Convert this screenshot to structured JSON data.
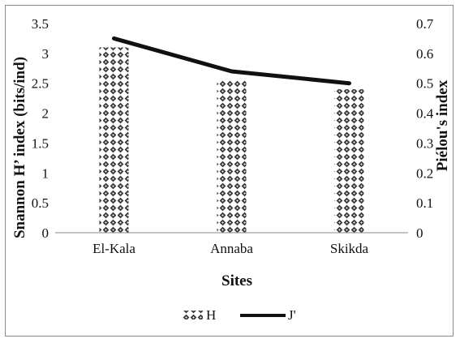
{
  "chart_data": {
    "type": "bar",
    "categories": [
      "El-Kala",
      "Annaba",
      "Skikda"
    ],
    "series": [
      {
        "name": "H",
        "type": "bar",
        "axis": "left",
        "values": [
          3.1,
          2.55,
          2.4
        ],
        "color": "#3a3a3a",
        "pattern": "diamond-plaid"
      },
      {
        "name": "J'",
        "type": "line",
        "axis": "right",
        "values": [
          0.65,
          0.54,
          0.5
        ],
        "color": "#111111"
      }
    ],
    "xlabel": "Sites",
    "ylabel": "Snannon H’ index (bits/ind)",
    "y2label": "Piélou's index",
    "ylim": [
      0,
      3.5
    ],
    "y2lim": [
      0,
      0.7
    ],
    "yticks": [
      "0",
      "0.5",
      "1",
      "1.5",
      "2",
      "2.5",
      "3",
      "3.5"
    ],
    "y2ticks": [
      "0",
      "0.1",
      "0.2",
      "0.3",
      "0.4",
      "0.5",
      "0.6",
      "0.7"
    ],
    "grid": false,
    "legend_position": "bottom"
  }
}
